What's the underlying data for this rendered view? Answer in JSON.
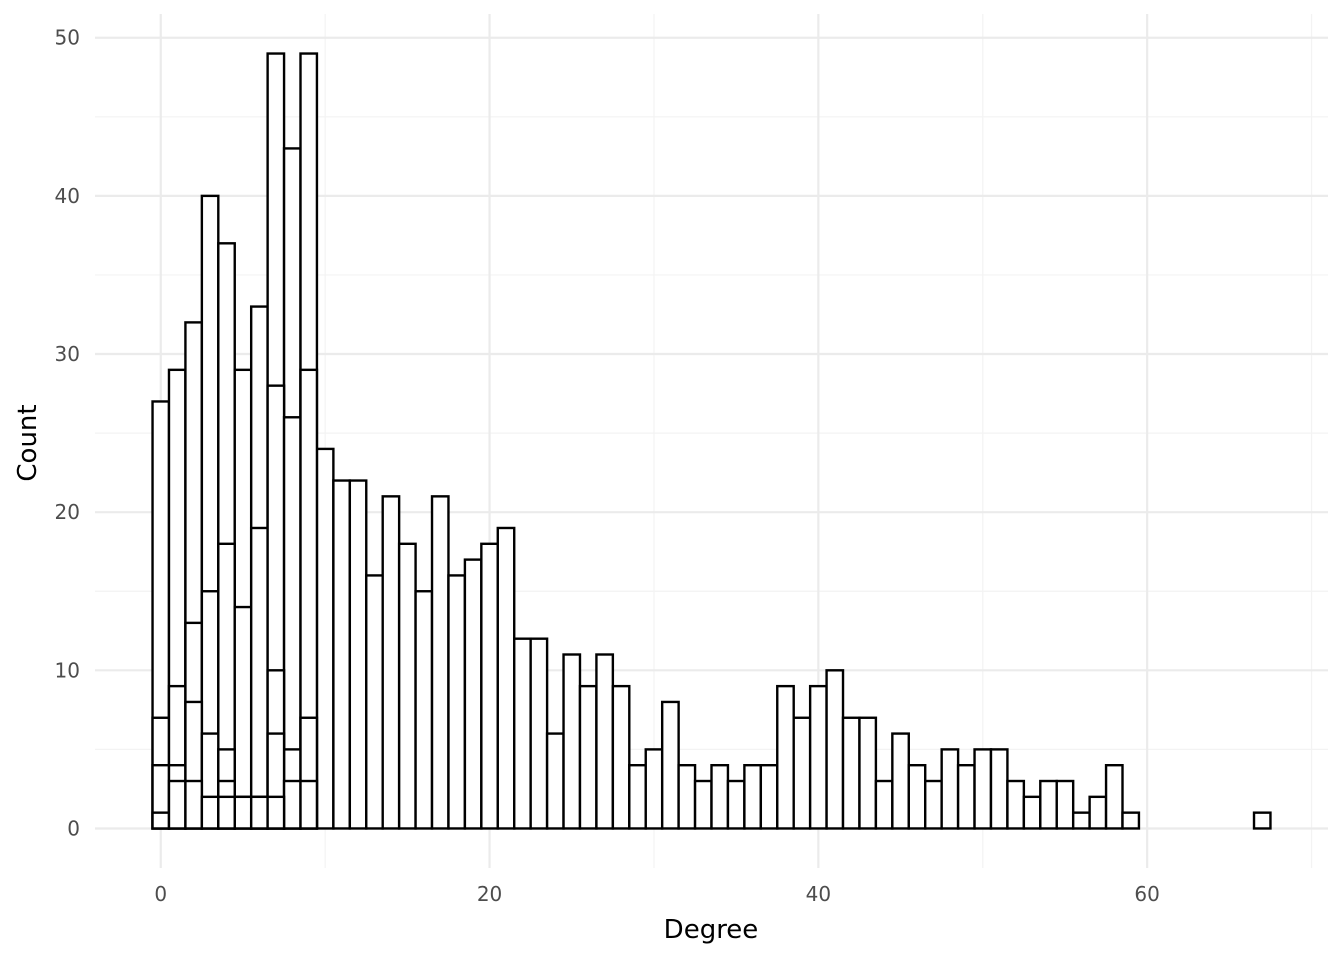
{
  "chart_data": {
    "type": "bar",
    "title": "",
    "xlabel": "Degree",
    "ylabel": "Count",
    "xlim": [
      -4,
      71
    ],
    "ylim": [
      -2.5,
      51.5
    ],
    "x_ticks": [
      0,
      20,
      40,
      60
    ],
    "y_ticks": [
      0,
      10,
      20,
      30,
      40,
      50
    ],
    "grid": true,
    "legend": "none",
    "bin_width": 1,
    "x": [
      0,
      1,
      2,
      3,
      4,
      5,
      6,
      7,
      8,
      9,
      10,
      11,
      12,
      13,
      14,
      15,
      16,
      17,
      18,
      19,
      20,
      21,
      22,
      23,
      24,
      25,
      26,
      27,
      28,
      29,
      30,
      31,
      32,
      33,
      34,
      35,
      36,
      37,
      38,
      39,
      40,
      41,
      42,
      43,
      44,
      45,
      46,
      47,
      48,
      49,
      50,
      51,
      52,
      53,
      54,
      55,
      56,
      57,
      58,
      59,
      67
    ],
    "series": [
      {
        "values": [
          27,
          29,
          32,
          40,
          37,
          29,
          33,
          49,
          43,
          49,
          24,
          22,
          22,
          16,
          21,
          18,
          15,
          21,
          16,
          17,
          18,
          19,
          12,
          12,
          6,
          11,
          9,
          11,
          9,
          4,
          5,
          8,
          4,
          3,
          4,
          3,
          4,
          4,
          9,
          7,
          9,
          10,
          7,
          7,
          3,
          6,
          4,
          3,
          5,
          4,
          5,
          5,
          3,
          2,
          3,
          3,
          1,
          2,
          4,
          1,
          1
        ]
      },
      {
        "values": [
          7,
          9,
          13,
          15,
          18,
          14,
          19,
          28,
          26,
          29,
          0,
          0,
          0,
          0,
          0,
          0,
          0,
          0,
          0,
          0,
          0,
          0,
          0,
          0,
          0,
          0,
          0,
          0,
          0,
          0,
          0,
          0,
          0,
          0,
          0,
          0,
          0,
          0,
          0,
          0,
          0,
          0,
          0,
          0,
          0,
          0,
          0,
          0,
          0,
          0,
          0,
          0,
          0,
          0,
          0,
          0,
          0,
          0,
          0,
          0,
          0
        ]
      },
      {
        "values": [
          4,
          4,
          8,
          6,
          5,
          2,
          2,
          10,
          5,
          7,
          0,
          0,
          0,
          0,
          0,
          0,
          0,
          0,
          0,
          0,
          0,
          0,
          0,
          0,
          0,
          0,
          0,
          0,
          0,
          0,
          0,
          0,
          0,
          0,
          0,
          0,
          0,
          0,
          0,
          0,
          0,
          0,
          0,
          0,
          0,
          0,
          0,
          0,
          0,
          0,
          0,
          0,
          0,
          0,
          0,
          0,
          0,
          0,
          0,
          0,
          0
        ]
      },
      {
        "values": [
          1,
          3,
          3,
          2,
          3,
          2,
          1,
          6,
          3,
          3,
          0,
          0,
          0,
          0,
          0,
          0,
          0,
          0,
          0,
          0,
          0,
          0,
          0,
          0,
          0,
          0,
          0,
          0,
          0,
          0,
          0,
          0,
          0,
          0,
          0,
          0,
          0,
          0,
          0,
          0,
          0,
          0,
          0,
          0,
          0,
          0,
          0,
          0,
          0,
          0,
          0,
          0,
          0,
          0,
          0,
          0,
          0,
          0,
          0,
          0,
          0
        ]
      },
      {
        "values": [
          0,
          0,
          0,
          0,
          2,
          0,
          2,
          2,
          0,
          0,
          0,
          0,
          0,
          0,
          0,
          0,
          0,
          0,
          0,
          0,
          0,
          0,
          0,
          0,
          0,
          0,
          0,
          0,
          0,
          0,
          0,
          0,
          0,
          0,
          0,
          0,
          0,
          0,
          0,
          0,
          0,
          0,
          0,
          0,
          0,
          0,
          0,
          0,
          0,
          0,
          0,
          0,
          0,
          0,
          0,
          0,
          0,
          0,
          0,
          0,
          0
        ]
      }
    ]
  }
}
